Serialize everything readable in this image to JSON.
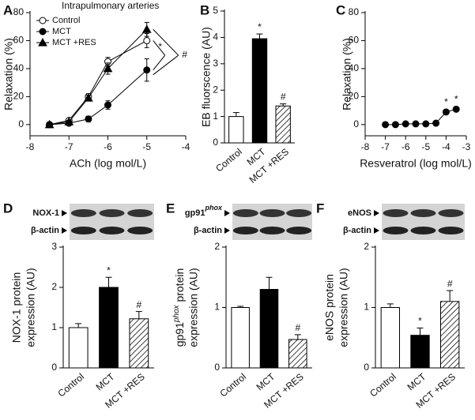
{
  "chart_data": [
    {
      "type": "line",
      "panel": "A",
      "title": "Intrapulmonary arteries",
      "xlabel": "ACh (log mol/L)",
      "ylabel": "Relaxation (%)",
      "x": [
        -7.5,
        -7,
        -6.5,
        -6,
        -5
      ],
      "xlim": [
        -8,
        -4
      ],
      "xticks": [
        -8,
        -7,
        -6,
        -5,
        -4
      ],
      "ylim": [
        -8,
        80
      ],
      "yticks": [
        0,
        20,
        40,
        60,
        80
      ],
      "series": [
        {
          "name": "Control",
          "marker": "open-circle",
          "color": "#000000",
          "values": [
            0,
            3,
            20,
            45,
            60
          ],
          "errors": [
            0,
            1,
            2,
            3,
            5
          ]
        },
        {
          "name": "MCT",
          "marker": "circle",
          "color": "#000000",
          "values": [
            0,
            1,
            4,
            14,
            39
          ],
          "errors": [
            0,
            1,
            2,
            3,
            8
          ]
        },
        {
          "name": "MCT +RES",
          "marker": "triangle",
          "color": "#000000",
          "values": [
            0,
            2,
            19,
            40,
            68
          ],
          "errors": [
            0,
            1,
            2,
            4,
            5
          ]
        }
      ],
      "annotations": [
        "*",
        "#"
      ]
    },
    {
      "type": "bar",
      "panel": "B",
      "ylabel": "EB fluorscence (AU)",
      "categories": [
        "Control",
        "MCT",
        "MCT +RES"
      ],
      "values": [
        1.0,
        3.95,
        1.4
      ],
      "errors": [
        0.15,
        0.18,
        0.08
      ],
      "colors": [
        "#ffffff",
        "#000000",
        "#ffffff"
      ],
      "hatch": [
        false,
        false,
        true
      ],
      "ylim": [
        0,
        5
      ],
      "yticks": [
        0,
        1,
        2,
        3,
        4,
        5
      ],
      "annotations": [
        null,
        "*",
        "#"
      ]
    },
    {
      "type": "scatter",
      "panel": "C",
      "xlabel": "Resveratrol (log mol/L)",
      "ylabel": "Relaxation (%)",
      "x": [
        -7,
        -6.5,
        -6,
        -5.5,
        -5,
        -4.5,
        -4,
        -3.5
      ],
      "values": [
        0,
        0,
        0.5,
        0.5,
        0.5,
        1,
        9,
        11
      ],
      "color": "#000000",
      "xlim": [
        -8,
        -3
      ],
      "xticks": [
        -8,
        -7,
        -6,
        -5,
        -4,
        -3
      ],
      "ylim": [
        -8,
        80
      ],
      "yticks": [
        0,
        20,
        40,
        60,
        80
      ],
      "annotations": [
        null,
        null,
        null,
        null,
        null,
        null,
        "*",
        "*"
      ]
    },
    {
      "type": "bar",
      "panel": "D",
      "blot_label": "NOX-1",
      "blot_control": "β-actin",
      "ylabel": "NOX-1 protein",
      "ylabel2": "expression (AU)",
      "categories": [
        "Control",
        "MCT",
        "MCT +RES"
      ],
      "values": [
        1.0,
        2.0,
        1.22
      ],
      "errors": [
        0.1,
        0.25,
        0.18
      ],
      "colors": [
        "#ffffff",
        "#000000",
        "#ffffff"
      ],
      "hatch": [
        false,
        false,
        true
      ],
      "ylim": [
        0,
        3
      ],
      "yticks": [
        0,
        1,
        2,
        3
      ],
      "annotations": [
        null,
        "*",
        "#"
      ]
    },
    {
      "type": "bar",
      "panel": "E",
      "blot_label": "gp91",
      "blot_label_sup": "phox",
      "blot_control": "β-actin",
      "ylabel": "gp91",
      "ylabel_sup": "phox",
      "ylabel_rest": " protein",
      "ylabel2": "expression (AU)",
      "categories": [
        "Control",
        "MCT",
        "MCT +RES"
      ],
      "values": [
        1.0,
        1.3,
        0.47
      ],
      "errors": [
        0.02,
        0.2,
        0.08
      ],
      "colors": [
        "#ffffff",
        "#000000",
        "#ffffff"
      ],
      "hatch": [
        false,
        false,
        true
      ],
      "ylim": [
        0,
        2
      ],
      "yticks": [
        0,
        1,
        2
      ],
      "annotations": [
        null,
        null,
        "#"
      ]
    },
    {
      "type": "bar",
      "panel": "F",
      "blot_label": "eNOS",
      "blot_control": "β-actin",
      "ylabel": "eNOS protein",
      "ylabel2": "expression (AU)",
      "categories": [
        "Control",
        "MCT",
        "MCT +RES"
      ],
      "values": [
        1.0,
        0.54,
        1.1
      ],
      "errors": [
        0.06,
        0.12,
        0.18
      ],
      "colors": [
        "#ffffff",
        "#000000",
        "#ffffff"
      ],
      "hatch": [
        false,
        false,
        true
      ],
      "ylim": [
        0,
        2
      ],
      "yticks": [
        0,
        1,
        2
      ],
      "annotations": [
        null,
        "*",
        "#"
      ]
    }
  ]
}
